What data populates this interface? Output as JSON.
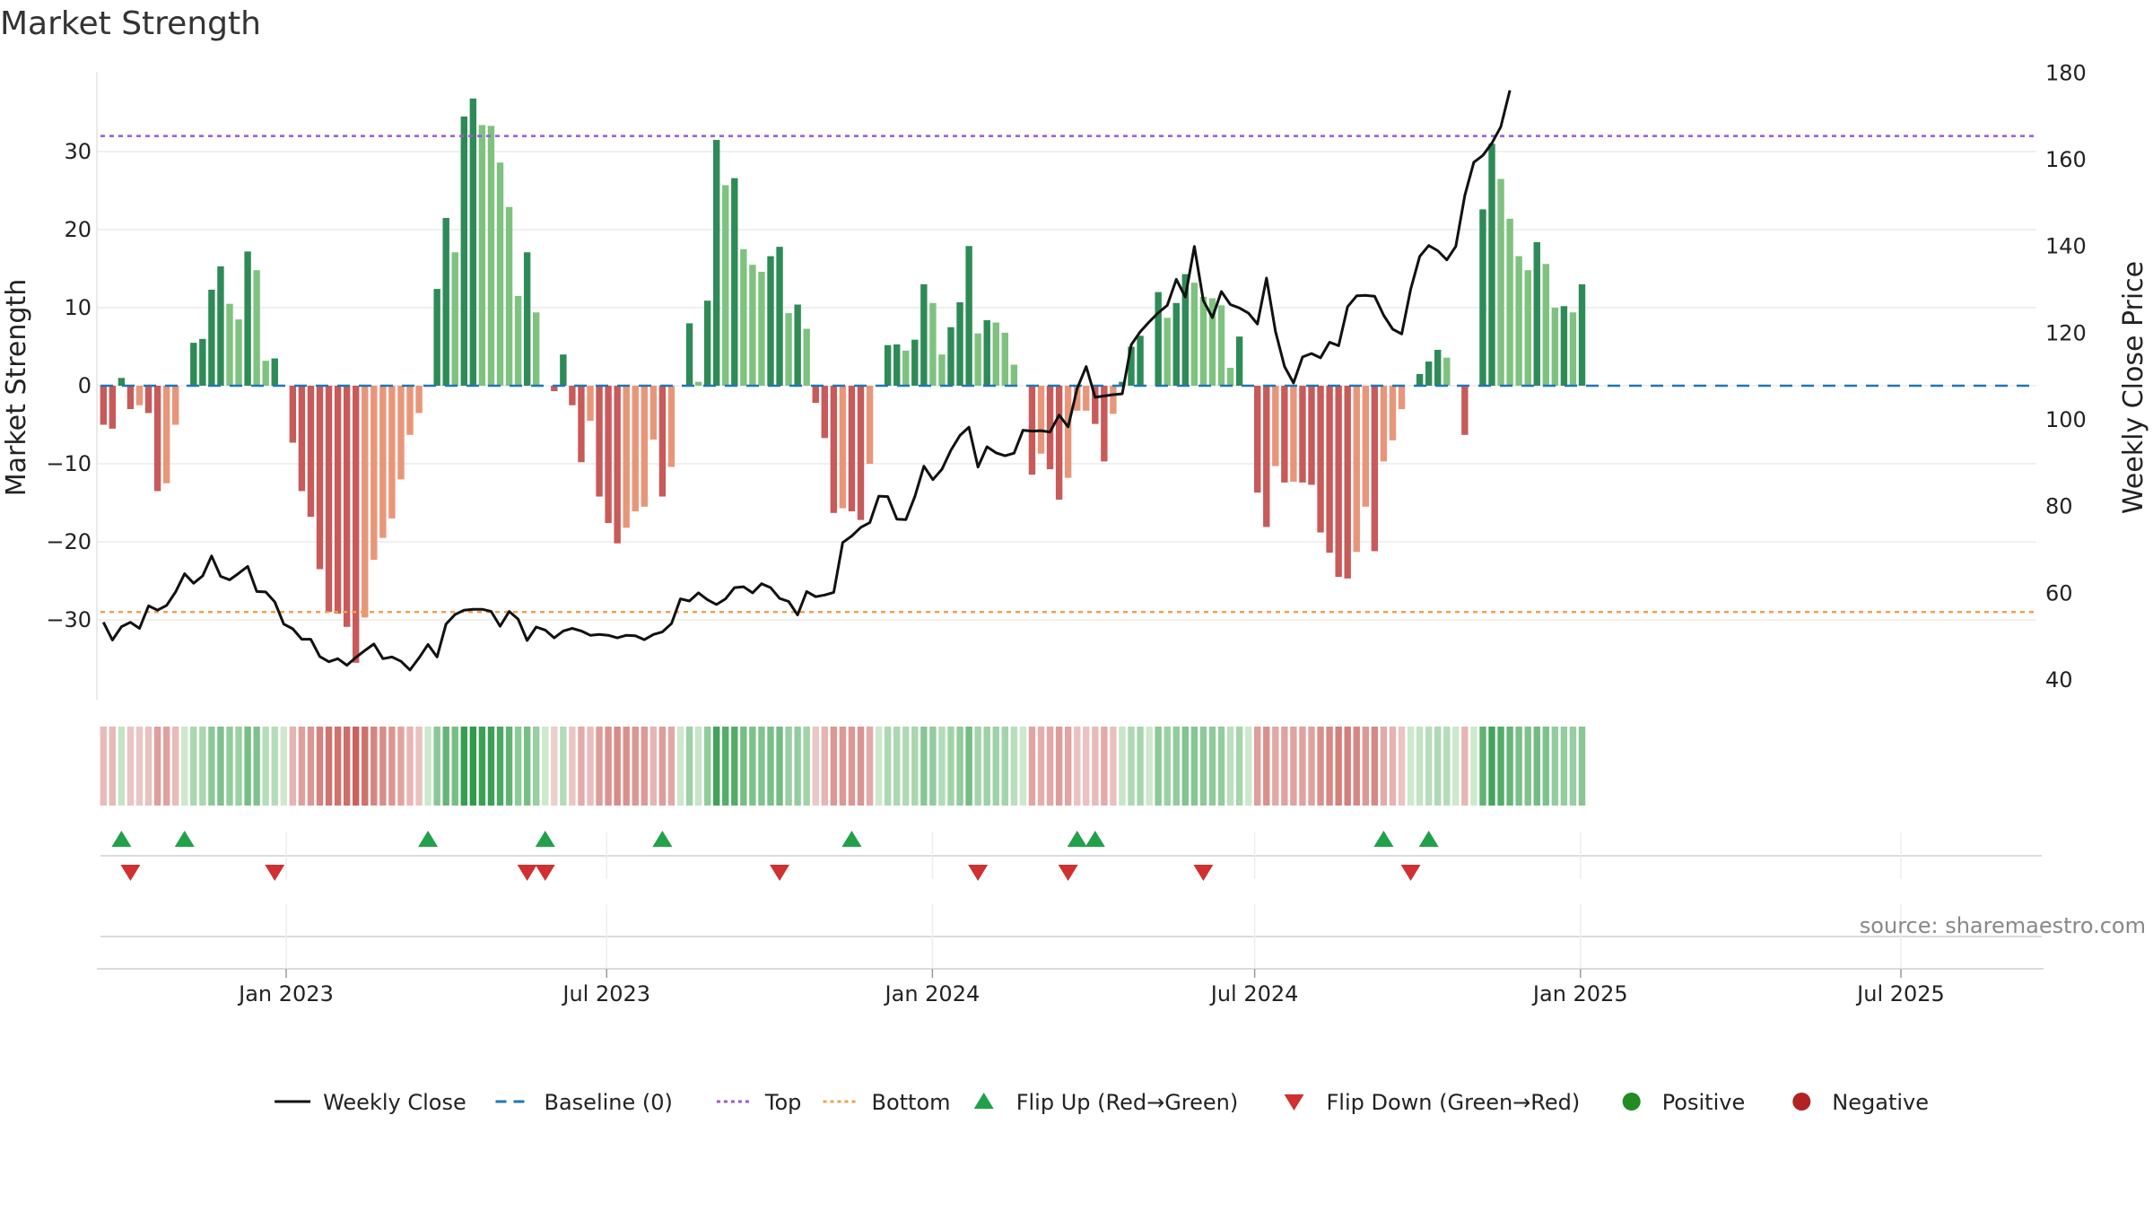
{
  "title": "Market Strength",
  "source": "source: sharemaestro.com",
  "colors": {
    "strong_green": "#2e8b57",
    "light_green": "#7fc27f",
    "strong_red": "#c85a5a",
    "light_red": "#e8967a",
    "close_line": "#111111",
    "baseline": "#1f77b4",
    "top": "#9b59d0",
    "bottom": "#f0a050",
    "flip_up": "#22a04a",
    "flip_down": "#d03030",
    "positive": "#228b22",
    "negative": "#b22222"
  },
  "legend": [
    {
      "label": "Weekly Close",
      "symbol": "line",
      "color": "#111111"
    },
    {
      "label": "Baseline (0)",
      "symbol": "dash",
      "color": "#1f77b4"
    },
    {
      "label": "Top",
      "symbol": "dot",
      "color": "#9b59d0"
    },
    {
      "label": "Bottom",
      "symbol": "dot",
      "color": "#f0a050"
    },
    {
      "label": "Flip Up (Red→Green)",
      "symbol": "tri-up",
      "color": "#22a04a"
    },
    {
      "label": "Flip Down (Green→Red)",
      "symbol": "tri-down",
      "color": "#d03030"
    },
    {
      "label": "Positive",
      "symbol": "circle",
      "color": "#228b22"
    },
    {
      "label": "Negative",
      "symbol": "circle",
      "color": "#b22222"
    }
  ],
  "chart_data": {
    "type": "bar",
    "x_axis": {
      "type": "date",
      "range": [
        "2022-09-12",
        "2025-09-15"
      ],
      "ticks": [
        {
          "date": "2023-01-01",
          "label": "Jan 2023"
        },
        {
          "date": "2023-07-01",
          "label": "Jul 2023"
        },
        {
          "date": "2024-01-01",
          "label": "Jan 2024"
        },
        {
          "date": "2024-07-01",
          "label": "Jul 2024"
        },
        {
          "date": "2025-01-01",
          "label": "Jan 2025"
        },
        {
          "date": "2025-07-01",
          "label": "Jul 2025"
        }
      ]
    },
    "y_left": {
      "label": "Market Strength",
      "range": [
        -39.5,
        39
      ],
      "ticks": [
        -30,
        -20,
        -10,
        0,
        10,
        20,
        30
      ]
    },
    "y_right": {
      "label": "Weekly Close Price",
      "range": [
        38,
        180
      ],
      "ticks": [
        40,
        60,
        80,
        100,
        120,
        140,
        160,
        180
      ]
    },
    "series_labels": [
      "Weekly Close",
      "Baseline (0)",
      "Top",
      "Bottom"
    ],
    "top_line": 32,
    "bottom_line": -29,
    "baseline": 0,
    "strength": [
      -5,
      -5.5,
      1,
      -3,
      -2.5,
      -3.5,
      -13.5,
      -12.5,
      -5,
      0,
      5.5,
      6,
      12.3,
      15.3,
      10.5,
      8.5,
      17.2,
      14.8,
      3.2,
      3.5,
      0,
      -7.3,
      -13.5,
      -16.8,
      -23.5,
      -29,
      -29.2,
      -30.9,
      -35.5,
      -29.7,
      -22.3,
      -19.5,
      -17,
      -12,
      -6.3,
      -3.5,
      0,
      12.4,
      21.5,
      17.1,
      34.5,
      36.8,
      33.4,
      33.3,
      28.6,
      22.9,
      11.5,
      17.1,
      9.4,
      0,
      -0.7,
      4,
      -2.5,
      -9.8,
      -4.5,
      -14.2,
      -17.6,
      -20.2,
      -18.2,
      -16.1,
      -15.5,
      -6.9,
      -14.2,
      -10.4,
      0,
      8,
      0.5,
      10.9,
      31.5,
      25.7,
      26.6,
      17.5,
      15.5,
      14.6,
      16.6,
      17.8,
      9.3,
      10.4,
      7.3,
      -2.2,
      -6.7,
      -16.3,
      -15.7,
      -16.1,
      -17.2,
      -10,
      0,
      5.2,
      5.3,
      4.5,
      5.9,
      13,
      10.6,
      4,
      7.5,
      10.7,
      17.9,
      6.7,
      8.4,
      8.1,
      6.8,
      2.7,
      0,
      -11.4,
      -8.7,
      -10.7,
      -14.6,
      -11.8,
      -3.2,
      -3.2,
      -4.9,
      -9.7,
      -3.6,
      0.5,
      5,
      6.4,
      0,
      12,
      8.7,
      10.6,
      14.3,
      13.2,
      11.4,
      11.2,
      10.3,
      2.3,
      6.3,
      0,
      -13.7,
      -18.1,
      -10.3,
      -12.4,
      -12.3,
      -12.4,
      -12.7,
      -18.8,
      -21.4,
      -24.5,
      -24.7,
      -21.3,
      -15.5,
      -21.2,
      -9.7,
      -7,
      -3,
      0,
      1.5,
      3.1,
      4.6,
      3.6,
      0,
      -6.3,
      0,
      22.6,
      31,
      26.5,
      21.4,
      16.6,
      14.8,
      18.4,
      15.6,
      10,
      10.2,
      9.4,
      13
    ],
    "weekly_close": [
      53.3,
      49.2,
      52.3,
      53.3,
      51.9,
      57.1,
      56.1,
      57.2,
      60.3,
      64.5,
      62.3,
      64,
      68.6,
      63.9,
      63.1,
      64.6,
      66.2,
      60.4,
      60.3,
      58,
      52.9,
      51.8,
      49.4,
      49.4,
      45.4,
      44.2,
      44.9,
      43.4,
      45.2,
      46.8,
      48.3,
      44.9,
      45.3,
      44.3,
      42.3,
      45.1,
      48.2,
      45.3,
      52.9,
      55.1,
      56.1,
      56.3,
      56.3,
      55.8,
      52.4,
      55.8,
      54,
      49.1,
      52.2,
      51.5,
      49.7,
      51.3,
      51.9,
      51.3,
      50.3,
      50.5,
      50.3,
      49.7,
      50.3,
      50.2,
      49.3,
      50.5,
      51.1,
      53,
      58.7,
      58.2,
      60.1,
      58.5,
      57.4,
      58.7,
      61.3,
      61.5,
      60.1,
      62.2,
      61.3,
      58.8,
      58.1,
      55,
      60.4,
      59.2,
      59.6,
      60.2,
      71.7,
      73.2,
      75.2,
      76.3,
      82.4,
      82.3,
      77.1,
      77,
      82.3,
      89.3,
      86.2,
      88.6,
      93,
      96.4,
      98.3,
      89.1,
      93.8,
      92.4,
      91.7,
      92.3,
      97.6,
      97.4,
      97.5,
      97.2,
      101.1,
      98.4,
      107.2,
      112.3,
      105.2,
      105.5,
      105.8,
      106,
      117.3,
      120.3,
      122.6,
      124.7,
      126.4,
      132.4,
      128.3,
      140,
      127.5,
      123.6,
      129.6,
      126.6,
      125.8,
      124.6,
      122.1,
      132.7,
      120.4,
      112.3,
      108.5,
      114.5,
      115.3,
      114.3,
      117.9,
      117.1,
      126.1,
      128.6,
      128.7,
      128.5,
      124.1,
      120.9,
      119.8,
      130.1,
      137.7,
      140.2,
      139,
      136.9,
      140,
      151.8,
      159.4,
      161,
      163.8,
      167.6,
      176
    ]
  },
  "flips": {
    "row_label": "",
    "up_indices": [
      2,
      9,
      36,
      49,
      62,
      83,
      108,
      110,
      142,
      147
    ],
    "down_indices": [
      3,
      19,
      47,
      49,
      75,
      97,
      107,
      122,
      145
    ]
  }
}
